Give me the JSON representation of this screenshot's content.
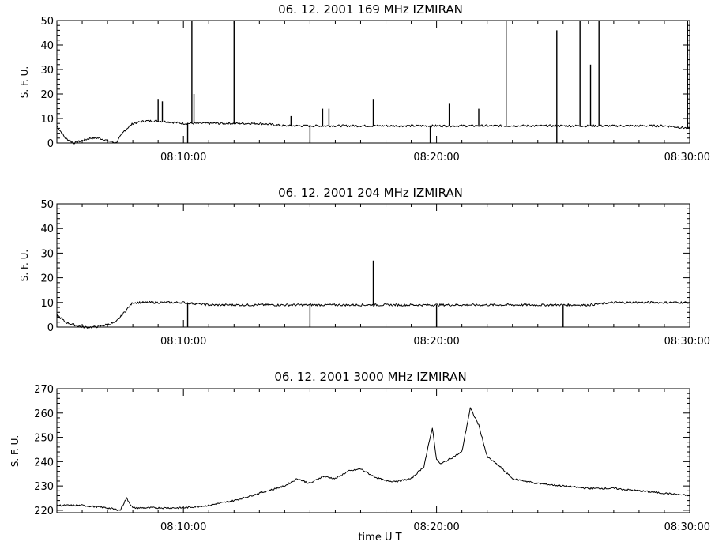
{
  "chart_data": [
    {
      "type": "line",
      "title": "06.  12.  2001    169  MHz    IZMIRAN",
      "ylabel": "S. F. U.",
      "xlabel": "",
      "xlim": [
        "08:05:00",
        "08:30:00"
      ],
      "ylim": [
        0,
        50
      ],
      "yticks": [
        0,
        10,
        20,
        30,
        40,
        50
      ],
      "xticks": [
        "08:10:00",
        "08:20:00",
        "08:30:00"
      ],
      "grid": false,
      "series": [
        {
          "x": [
            "08:05:00",
            "08:05:20",
            "08:05:40",
            "08:06:00",
            "08:06:20",
            "08:06:40",
            "08:07:00",
            "08:07:20",
            "08:07:40",
            "08:08:00",
            "08:08:30",
            "08:09:00",
            "08:10:00",
            "08:11:00",
            "08:12:00",
            "08:13:00",
            "08:14:00",
            "08:15:00",
            "08:16:00",
            "08:17:00",
            "08:18:00",
            "08:19:00",
            "08:20:00",
            "08:21:00",
            "08:22:00",
            "08:23:00",
            "08:24:00",
            "08:25:00",
            "08:26:00",
            "08:27:00",
            "08:28:00",
            "08:29:00",
            "08:30:00"
          ],
          "values": [
            7,
            2,
            0,
            1,
            2,
            2,
            1,
            0,
            5,
            8,
            9,
            9,
            8,
            8,
            8,
            8,
            7,
            7,
            7,
            7,
            7,
            7,
            7,
            7,
            7,
            7,
            7,
            7,
            7,
            7,
            7,
            7,
            6
          ],
          "spikes": [
            {
              "x": "08:09:00",
              "y": 18
            },
            {
              "x": "08:09:10",
              "y": 17
            },
            {
              "x": "08:10:20",
              "y": 50
            },
            {
              "x": "08:10:25",
              "y": 20
            },
            {
              "x": "08:12:00",
              "y": 50
            },
            {
              "x": "08:14:15",
              "y": 11
            },
            {
              "x": "08:15:30",
              "y": 14
            },
            {
              "x": "08:15:45",
              "y": 14
            },
            {
              "x": "08:17:30",
              "y": 18
            },
            {
              "x": "08:20:30",
              "y": 16
            },
            {
              "x": "08:21:40",
              "y": 14
            },
            {
              "x": "08:22:45",
              "y": 50
            },
            {
              "x": "08:24:45",
              "y": 46
            },
            {
              "x": "08:25:40",
              "y": 50
            },
            {
              "x": "08:26:05",
              "y": 32
            },
            {
              "x": "08:26:25",
              "y": 50
            },
            {
              "x": "08:29:55",
              "y": 50
            }
          ],
          "dips": [
            {
              "x": "08:10:10",
              "y": -5
            },
            {
              "x": "08:15:00",
              "y": -2
            },
            {
              "x": "08:19:45",
              "y": -2
            },
            {
              "x": "08:24:45",
              "y": -2
            }
          ]
        }
      ]
    },
    {
      "type": "line",
      "title": "06.  12.  2001    204  MHz    IZMIRAN",
      "ylabel": "S. F. U.",
      "xlabel": "",
      "xlim": [
        "08:05:00",
        "08:30:00"
      ],
      "ylim": [
        0,
        50
      ],
      "yticks": [
        0,
        10,
        20,
        30,
        40,
        50
      ],
      "xticks": [
        "08:10:00",
        "08:20:00",
        "08:30:00"
      ],
      "grid": false,
      "series": [
        {
          "x": [
            "08:05:00",
            "08:05:20",
            "08:05:40",
            "08:06:00",
            "08:06:30",
            "08:07:00",
            "08:07:20",
            "08:07:40",
            "08:08:00",
            "08:09:00",
            "08:10:00",
            "08:11:00",
            "08:12:00",
            "08:13:00",
            "08:14:00",
            "08:15:00",
            "08:16:00",
            "08:17:00",
            "08:18:00",
            "08:19:00",
            "08:20:00",
            "08:21:00",
            "08:22:00",
            "08:23:00",
            "08:24:00",
            "08:25:00",
            "08:26:00",
            "08:27:00",
            "08:28:00",
            "08:29:00",
            "08:30:00"
          ],
          "values": [
            5,
            2,
            1,
            0,
            0,
            1,
            2,
            6,
            10,
            10,
            10,
            9,
            9,
            9,
            9,
            9,
            9,
            9,
            9,
            9,
            9,
            9,
            9,
            9,
            9,
            9,
            9,
            10,
            10,
            10,
            10
          ],
          "spikes": [
            {
              "x": "08:17:30",
              "y": 27
            }
          ],
          "dips": [
            {
              "x": "08:10:10",
              "y": -2
            },
            {
              "x": "08:15:00",
              "y": -2
            },
            {
              "x": "08:20:00",
              "y": -2
            },
            {
              "x": "08:25:00",
              "y": -2
            }
          ]
        }
      ]
    },
    {
      "type": "line",
      "title": "06.  12.  2001    3000  MHz    IZMIRAN",
      "ylabel": "S. F. U.",
      "xlabel": "time   U T",
      "xlim": [
        "08:05:00",
        "08:30:00"
      ],
      "ylim": [
        219,
        270
      ],
      "yticks": [
        220,
        230,
        240,
        250,
        260,
        270
      ],
      "xticks": [
        "08:10:00",
        "08:20:00",
        "08:30:00"
      ],
      "grid": false,
      "series": [
        {
          "x": [
            "08:05:00",
            "08:06:00",
            "08:07:00",
            "08:07:30",
            "08:07:45",
            "08:08:00",
            "08:09:00",
            "08:10:00",
            "08:11:00",
            "08:12:00",
            "08:13:00",
            "08:14:00",
            "08:14:30",
            "08:15:00",
            "08:15:30",
            "08:16:00",
            "08:16:30",
            "08:17:00",
            "08:17:30",
            "08:18:00",
            "08:18:30",
            "08:19:00",
            "08:19:30",
            "08:19:50",
            "08:20:00",
            "08:20:10",
            "08:20:30",
            "08:21:00",
            "08:21:20",
            "08:21:40",
            "08:22:00",
            "08:22:30",
            "08:23:00",
            "08:24:00",
            "08:25:00",
            "08:26:00",
            "08:27:00",
            "08:28:00",
            "08:29:00",
            "08:30:00"
          ],
          "values": [
            222,
            222,
            221,
            220,
            225,
            221,
            221,
            221,
            222,
            224,
            227,
            230,
            233,
            231,
            234,
            233,
            236,
            237,
            234,
            232,
            232,
            233,
            238,
            254,
            241,
            239,
            241,
            244,
            262,
            255,
            242,
            238,
            233,
            231,
            230,
            229,
            229,
            228,
            227,
            226
          ]
        }
      ]
    }
  ]
}
